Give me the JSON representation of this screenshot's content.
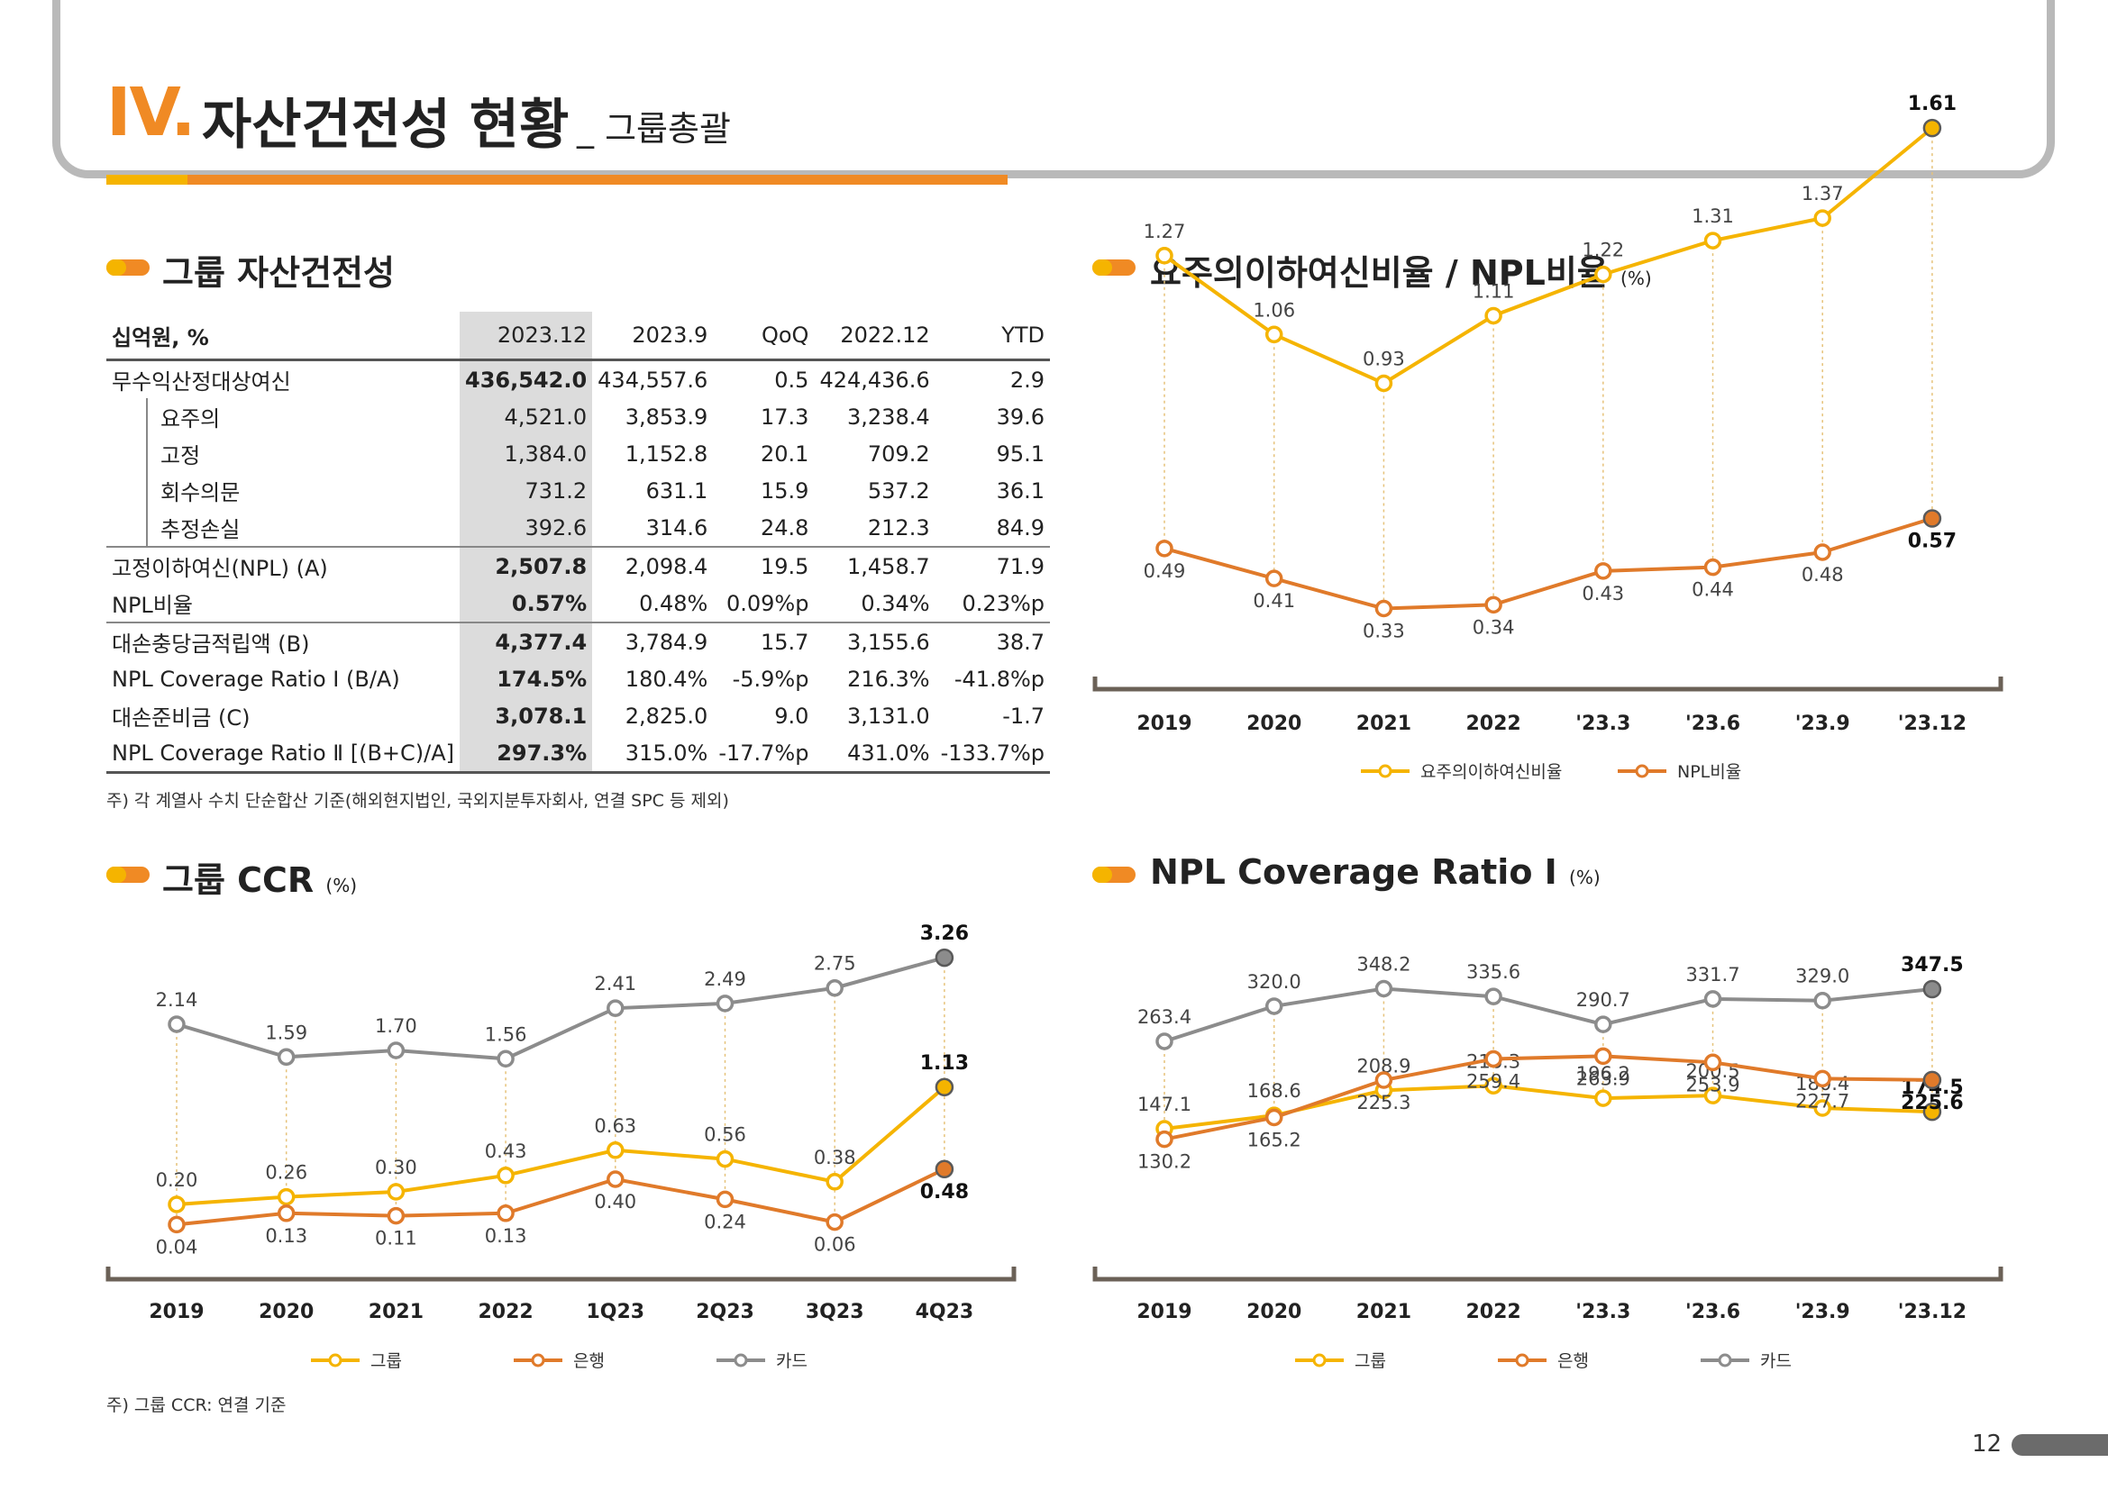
{
  "header": {
    "roman": "IV.",
    "title": "자산건전성 현황",
    "subtitle": "_ 그룹총괄"
  },
  "page_number": "12",
  "asset_section": {
    "title": "그룹 자산건전성",
    "columns": [
      "십억원, %",
      "2023.12",
      "2023.9",
      "QoQ",
      "2022.12",
      "YTD"
    ],
    "rows": [
      {
        "label": "무수익산정대상여신",
        "values": [
          "436,542.0",
          "434,557.6",
          "0.5",
          "424,436.6",
          "2.9"
        ],
        "bold": true,
        "sub": false
      },
      {
        "label": "요주의",
        "values": [
          "4,521.0",
          "3,853.9",
          "17.3",
          "3,238.4",
          "39.6"
        ],
        "bold": false,
        "sub": true
      },
      {
        "label": "고정",
        "values": [
          "1,384.0",
          "1,152.8",
          "20.1",
          "709.2",
          "95.1"
        ],
        "bold": false,
        "sub": true
      },
      {
        "label": "회수의문",
        "values": [
          "731.2",
          "631.1",
          "15.9",
          "537.2",
          "36.1"
        ],
        "bold": false,
        "sub": true
      },
      {
        "label": "추정손실",
        "values": [
          "392.6",
          "314.6",
          "24.8",
          "212.3",
          "84.9"
        ],
        "bold": false,
        "sub": true
      },
      {
        "label": "고정이하여신(NPL) (A)",
        "values": [
          "2,507.8",
          "2,098.4",
          "19.5",
          "1,458.7",
          "71.9"
        ],
        "bold": true,
        "sub": false
      },
      {
        "label": "NPL비율",
        "values": [
          "0.57%",
          "0.48%",
          "0.09%p",
          "0.34%",
          "0.23%p"
        ],
        "bold": true,
        "sub": false
      },
      {
        "label": "대손충당금적립액 (B)",
        "values": [
          "4,377.4",
          "3,784.9",
          "15.7",
          "3,155.6",
          "38.7"
        ],
        "bold": true,
        "sub": false
      },
      {
        "label": "NPL Coverage Ratio Ⅰ (B/A)",
        "values": [
          "174.5%",
          "180.4%",
          "-5.9%p",
          "216.3%",
          "-41.8%p"
        ],
        "bold": true,
        "sub": false
      },
      {
        "label": "대손준비금 (C)",
        "values": [
          "3,078.1",
          "2,825.0",
          "9.0",
          "3,131.0",
          "-1.7"
        ],
        "bold": true,
        "sub": false
      },
      {
        "label": "NPL Coverage Ratio Ⅱ [(B+C)/A]",
        "values": [
          "297.3%",
          "315.0%",
          "-17.7%p",
          "431.0%",
          "-133.7%p"
        ],
        "bold": true,
        "sub": false
      }
    ],
    "note": "주) 각 계열사 수치 단순합산 기준(해외현지법인, 국외지분투자회사, 연결 SPC 등 제외)"
  },
  "colors": {
    "orange": "#f08a24",
    "yellow": "#f5b400",
    "npl": "#e07a2a",
    "grey": "#8c8c8c",
    "axis": "#6b6157"
  },
  "chart_data": [
    {
      "type": "line",
      "title": "요주의이하여신비율 / NPL비율",
      "unit": "(%)",
      "categories": [
        "2019",
        "2020",
        "2021",
        "2022",
        "'23.3",
        "'23.6",
        "'23.9",
        "'23.12"
      ],
      "series": [
        {
          "name": "요주의이하여신비율",
          "values": [
            1.27,
            1.06,
            0.93,
            1.11,
            1.22,
            1.31,
            1.37,
            1.61
          ],
          "labels": [
            "1.27",
            "1.06",
            "0.93",
            "1.11",
            "1.22",
            "1.31",
            "1.37",
            "1.61"
          ],
          "color": "#f5b400"
        },
        {
          "name": "NPL비율",
          "values": [
            0.49,
            0.41,
            0.33,
            0.34,
            0.43,
            0.44,
            0.48,
            0.57
          ],
          "labels": [
            "0.49",
            "0.41",
            "0.33",
            "0.34",
            "0.43",
            "0.44",
            "0.48",
            "0.57"
          ],
          "color": "#e07a2a"
        }
      ],
      "ylim": [
        0.2,
        1.8
      ]
    },
    {
      "type": "line",
      "title": "그룹 CCR",
      "unit": "(%)",
      "categories": [
        "2019",
        "2020",
        "2021",
        "2022",
        "1Q23",
        "2Q23",
        "3Q23",
        "4Q23"
      ],
      "series": [
        {
          "name": "그룹",
          "values": [
            0.2,
            0.26,
            0.3,
            0.43,
            0.63,
            0.56,
            0.38,
            1.13
          ],
          "labels": [
            "0.20",
            "0.26",
            "0.30",
            "0.43",
            "0.63",
            "0.56",
            "0.38",
            "1.13"
          ],
          "color": "#f5b400"
        },
        {
          "name": "은행",
          "values": [
            0.04,
            0.13,
            0.11,
            0.13,
            0.4,
            0.24,
            0.06,
            0.48
          ],
          "labels": [
            "0.04",
            "0.13",
            "0.11",
            "0.13",
            "0.40",
            "0.24",
            "0.06",
            "0.48"
          ],
          "color": "#e07a2a"
        },
        {
          "name": "카드",
          "values": [
            2.14,
            1.59,
            1.7,
            1.56,
            2.41,
            2.49,
            2.75,
            3.26
          ],
          "labels": [
            "2.14",
            "1.59",
            "1.70",
            "1.56",
            "2.41",
            "2.49",
            "2.75",
            "3.26"
          ],
          "color": "#8c8c8c"
        }
      ],
      "note": "주) 그룹 CCR: 연결 기준"
    },
    {
      "type": "line",
      "title": "NPL Coverage Ratio Ⅰ",
      "unit": "(%)",
      "categories": [
        "2019",
        "2020",
        "2021",
        "2022",
        "'23.3",
        "'23.6",
        "'23.9",
        "'23.12"
      ],
      "series": [
        {
          "name": "그룹",
          "values": [
            147.1,
            168.6,
            208.9,
            216.3,
            196.2,
            200.5,
            180.4,
            174.5
          ],
          "labels": [
            "147.1",
            "168.6",
            "208.9",
            "216.3",
            "196.2",
            "200.5",
            "180.4",
            "174.5"
          ],
          "color": "#f5b400"
        },
        {
          "name": "은행",
          "values": [
            130.2,
            165.2,
            225.3,
            259.4,
            263.9,
            253.9,
            227.7,
            225.6
          ],
          "labels": [
            "130.2",
            "165.2",
            "225.3",
            "259.4",
            "263.9",
            "253.9",
            "227.7",
            "225.6"
          ],
          "color": "#e07a2a"
        },
        {
          "name": "카드",
          "values": [
            263.4,
            320.0,
            348.2,
            335.6,
            290.7,
            331.7,
            329.0,
            347.5
          ],
          "labels": [
            "263.4",
            "320.0",
            "348.2",
            "335.6",
            "290.7",
            "331.7",
            "329.0",
            "347.5"
          ],
          "color": "#8c8c8c"
        }
      ]
    }
  ]
}
